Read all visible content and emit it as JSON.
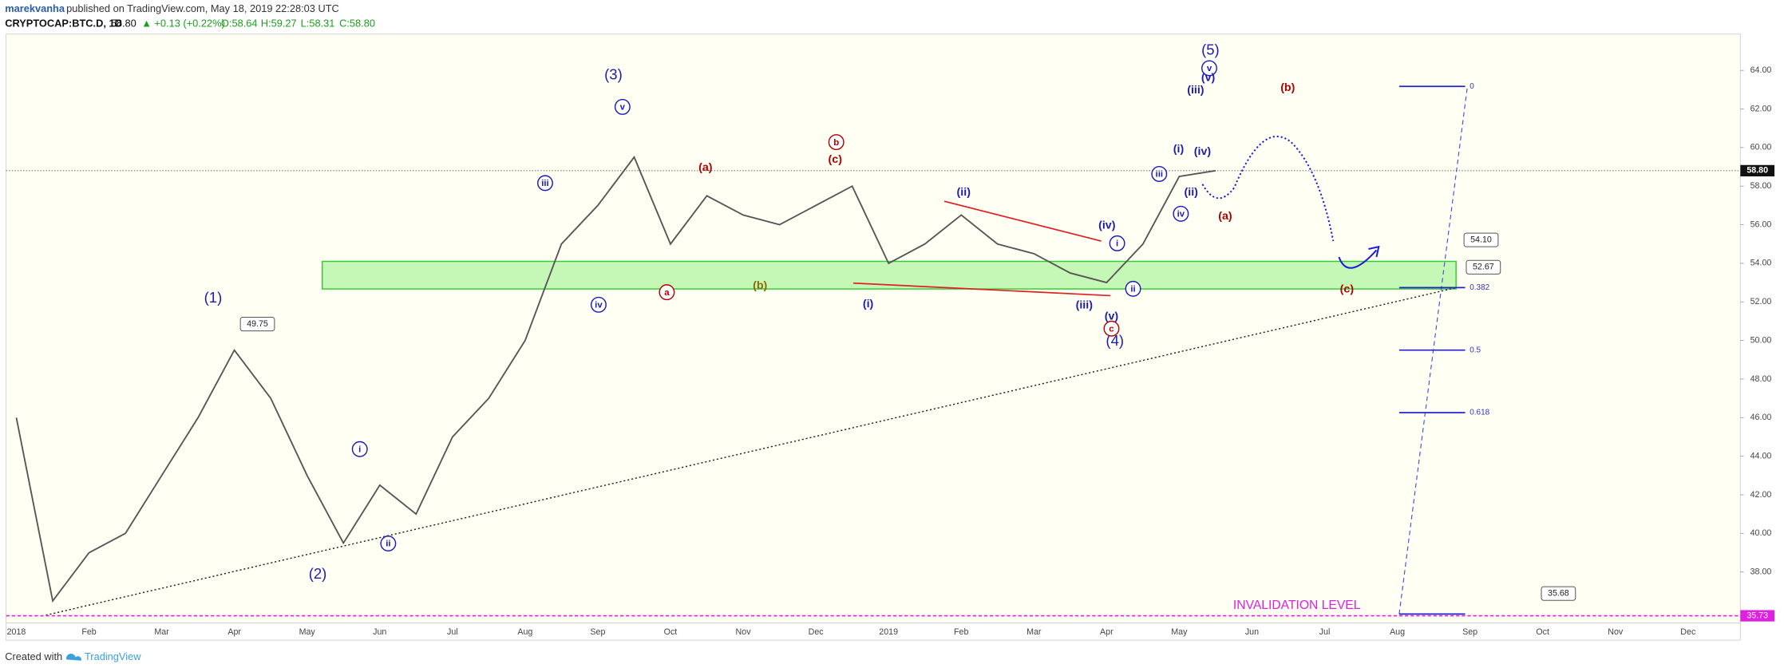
{
  "header": {
    "author": "marekvanha",
    "byline": "published on TradingView.com, May 18, 2019 22:28:03 UTC",
    "symbol": "CRYPTOCAP:BTC.D, 1D",
    "last": "58.80",
    "change": "▲ +0.13 (+0.22%)",
    "open": "O:58.64",
    "high": "H:59.27",
    "low": "L:58.31",
    "close": "C:58.80"
  },
  "chart_data": {
    "type": "line",
    "categories": [
      "2018",
      null,
      "Feb",
      null,
      "Mar",
      null,
      "Apr",
      null,
      "May",
      null,
      "Jun",
      null,
      "Jul",
      null,
      "Aug",
      null,
      "Sep",
      null,
      "Oct",
      null,
      "Nov",
      null,
      "Dec",
      null,
      "2019",
      null,
      "Feb",
      null,
      "Mar",
      null,
      "Apr",
      null,
      "May",
      null,
      "Jun",
      null,
      "Jul",
      null,
      "Aug",
      null,
      "Sep",
      null,
      "Oct",
      null,
      "Nov",
      null,
      "Dec",
      null
    ],
    "values": [
      46,
      36.5,
      39,
      40,
      43,
      46,
      49.5,
      47,
      43,
      39.5,
      42.5,
      41,
      45,
      47,
      50,
      55,
      57,
      59.5,
      55,
      57.5,
      56.5,
      56,
      57,
      58,
      54,
      55,
      56.5,
      55,
      54.5,
      53.5,
      53,
      55,
      58.5,
      58.8,
      null,
      null,
      null,
      null,
      null,
      null,
      null,
      null,
      null,
      null,
      null,
      null,
      null,
      null
    ],
    "color": "#555555",
    "ylim": [
      35.35,
      65.88
    ],
    "yticks": [
      {
        "value": 38,
        "label": "38.00"
      },
      {
        "value": 40,
        "label": "40.00"
      },
      {
        "value": 42,
        "label": "42.00"
      },
      {
        "value": 44,
        "label": "44.00"
      },
      {
        "value": 46,
        "label": "46.00"
      },
      {
        "value": 48,
        "label": "48.00"
      },
      {
        "value": 50,
        "label": "50.00"
      },
      {
        "value": 52,
        "label": "52.00"
      },
      {
        "value": 54,
        "label": "54.00"
      },
      {
        "value": 56,
        "label": "56.00"
      },
      {
        "value": 58,
        "label": "58.00"
      },
      {
        "value": 60,
        "label": "60.00"
      },
      {
        "value": 62,
        "label": "62.00"
      },
      {
        "value": 64,
        "label": "64.00"
      }
    ],
    "current_price": {
      "value": 58.8,
      "label": "58.80"
    },
    "zone": {
      "low": 52.67,
      "high": 54.1,
      "color": "#b6f5a8"
    },
    "callouts": [
      {
        "value": 49.75,
        "label": "49.75"
      },
      {
        "value": 54.1,
        "label": "54.10"
      },
      {
        "value": 52.67,
        "label": "52.67"
      },
      {
        "value": 35.68,
        "label": "35.68"
      }
    ],
    "fib": [
      {
        "level": 0,
        "price": 63.17
      },
      {
        "level": 0.382,
        "price": 52.74
      },
      {
        "level": 0.5,
        "price": 49.5
      },
      {
        "level": 0.618,
        "price": 46.26
      }
    ],
    "invalidation": {
      "text": "INVALIDATION LEVEL",
      "value": 35.73,
      "label": "35.73",
      "color": "#e020e0"
    },
    "annotations": [
      {
        "text": "(1)",
        "color": "#1c1cb4"
      },
      {
        "text": "(2)",
        "color": "#1c1cb4"
      },
      {
        "text": "(3)",
        "color": "#1c1cb4"
      },
      {
        "text": "(4)",
        "color": "#1c1cb4"
      },
      {
        "text": "(5)",
        "color": "#1c1cb4"
      },
      {
        "text": "i",
        "color": "#1c1cb4",
        "circled": true
      },
      {
        "text": "ii",
        "color": "#1c1cb4",
        "circled": true
      },
      {
        "text": "iii",
        "color": "#1c1cb4",
        "circled": true
      },
      {
        "text": "iv",
        "color": "#1c1cb4",
        "circled": true
      },
      {
        "text": "v",
        "color": "#1c1cb4",
        "circled": true
      },
      {
        "text": "a",
        "color": "#b00000",
        "circled": true
      },
      {
        "text": "b",
        "color": "#b00000",
        "circled": true
      },
      {
        "text": "c",
        "color": "#b00000",
        "circled": true
      },
      {
        "text": "i",
        "color": "#1c1cb4",
        "circled": true
      },
      {
        "text": "ii",
        "color": "#1c1cb4",
        "circled": true
      },
      {
        "text": "iii",
        "color": "#1c1cb4",
        "circled": true
      },
      {
        "text": "iv",
        "color": "#1c1cb4",
        "circled": true
      },
      {
        "text": "v",
        "color": "#1c1cb4",
        "circled": true
      },
      {
        "text": "(a)",
        "color": "#b00000"
      },
      {
        "text": "(c)",
        "color": "#b00000"
      },
      {
        "text": "(b)",
        "color": "#8a6a00"
      },
      {
        "text": "(i)",
        "color": "#1c1cb4"
      },
      {
        "text": "(ii)",
        "color": "#1c1cb4"
      },
      {
        "text": "(iii)",
        "color": "#1c1cb4"
      },
      {
        "text": "(iv)",
        "color": "#1c1cb4"
      },
      {
        "text": "(v)",
        "color": "#1c1cb4"
      },
      {
        "text": "(i)",
        "color": "#1c1cb4"
      },
      {
        "text": "(ii)",
        "color": "#1c1cb4"
      },
      {
        "text": "(iii)",
        "color": "#1c1cb4"
      },
      {
        "text": "(iv)",
        "color": "#1c1cb4"
      },
      {
        "text": "(v)",
        "color": "#1c1cb4"
      },
      {
        "text": "(a)",
        "color": "#b00000"
      },
      {
        "text": "(b)",
        "color": "#b00000"
      },
      {
        "text": "(c)",
        "color": "#b00000"
      }
    ]
  },
  "footer": {
    "prefix": "Created with",
    "brand": "TradingView"
  }
}
